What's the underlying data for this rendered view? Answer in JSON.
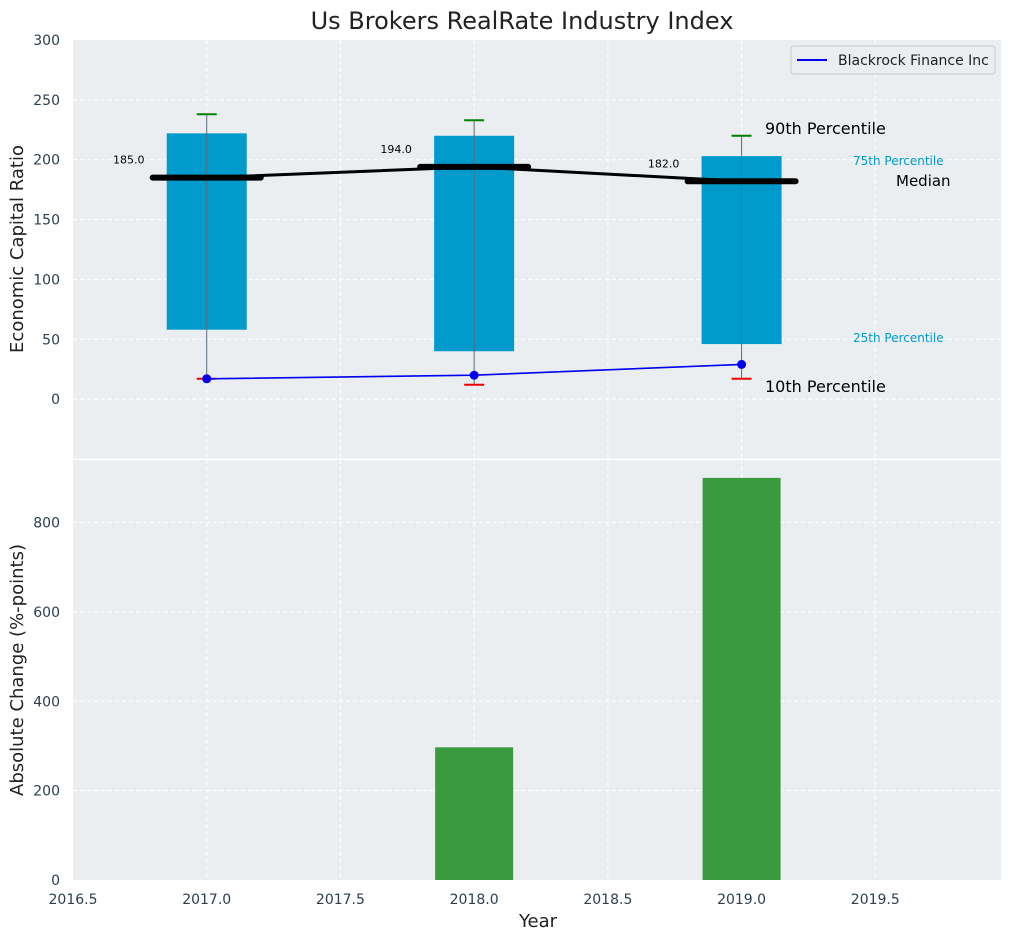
{
  "chart_data": [
    {
      "type": "box",
      "title": "Us Brokers RealRate Industry Index",
      "ylabel": "Economic Capital Ratio",
      "xlim": [
        2016.5,
        2019.97
      ],
      "ylim": [
        -50,
        300
      ],
      "yticks": [
        0,
        50,
        100,
        150,
        200,
        250,
        300
      ],
      "grid": true,
      "legend": {
        "position": "top-right",
        "entries": [
          "Blackrock Finance Inc"
        ]
      },
      "boxes": [
        {
          "x": 2017,
          "p10": 17,
          "p25": 58,
          "median": 185,
          "p75": 222,
          "p90": 238
        },
        {
          "x": 2018,
          "p10": 12,
          "p25": 40,
          "median": 194,
          "p75": 220,
          "p90": 233
        },
        {
          "x": 2019,
          "p10": 17,
          "p25": 46,
          "median": 182,
          "p75": 203,
          "p90": 220
        }
      ],
      "median_labels": [
        "185.0",
        "194.0",
        "182.0"
      ],
      "series": [
        {
          "name": "Blackrock Finance Inc",
          "color": "#0000ee",
          "x": [
            2017,
            2018,
            2019
          ],
          "values": [
            17,
            20,
            29
          ]
        }
      ],
      "annotations": {
        "p90": "90th Percentile",
        "p75": "75th Percentile",
        "median": "Median",
        "p25": "25th Percentile",
        "p10": "10th Percentile"
      },
      "colors": {
        "box": "#009acd",
        "median": "#000000",
        "p90_cap": "#008000",
        "p10_cap": "#ee0000",
        "p75_text": "#009acd",
        "background": "#eaeef0"
      }
    },
    {
      "type": "bar",
      "xlabel": "Year",
      "ylabel": "Absolute Change (%-points)",
      "xlim": [
        2016.5,
        2019.97
      ],
      "ylim": [
        0,
        940
      ],
      "xticks": [
        "2016.5",
        "2017.0",
        "2017.5",
        "2018.0",
        "2018.5",
        "2019.0",
        "2019.5"
      ],
      "yticks": [
        0,
        200,
        400,
        600,
        800
      ],
      "x": [
        2017,
        2018,
        2019
      ],
      "values": [
        0,
        297,
        900
      ],
      "color": "#3a9b3e",
      "grid": true
    }
  ]
}
